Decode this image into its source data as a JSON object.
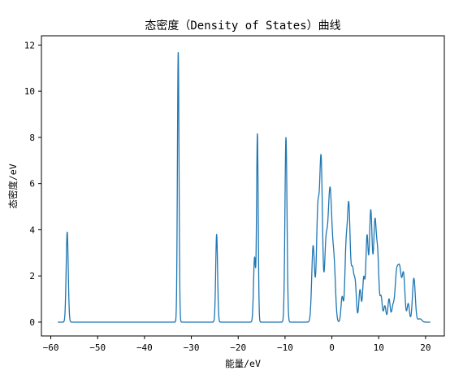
{
  "chart_data": {
    "type": "line",
    "title": "态密度（Density of States）曲线",
    "xlabel": "能量/eV",
    "ylabel": "态密度/eV",
    "xlim": [
      -62,
      24
    ],
    "ylim": [
      -0.6,
      12.4
    ],
    "grid": false,
    "xticks": [
      -60,
      -50,
      -40,
      -30,
      -20,
      -10,
      0,
      10,
      20
    ],
    "yticks": [
      0,
      2,
      4,
      6,
      8,
      10,
      12
    ],
    "xtick_labels": [
      "−60",
      "−50",
      "−40",
      "−30",
      "−20",
      "−10",
      "0",
      "10",
      "20"
    ],
    "ytick_labels": [
      "0",
      "2",
      "4",
      "6",
      "8",
      "10",
      "12"
    ],
    "series": [
      {
        "color": "#1f77b4",
        "x_range": [
          -58.5,
          21.0
        ],
        "peaks": [
          {
            "x": -56.5,
            "height": 3.9,
            "width": 0.22
          },
          {
            "x": -32.8,
            "height": 11.7,
            "width": 0.17
          },
          {
            "x": -24.6,
            "height": 3.8,
            "width": 0.2
          },
          {
            "x": -16.5,
            "height": 2.8,
            "width": 0.22
          },
          {
            "x": -15.9,
            "height": 8.1,
            "width": 0.17
          },
          {
            "x": -9.8,
            "height": 8.0,
            "width": 0.22
          },
          {
            "x": -4.0,
            "height": 3.3,
            "width": 0.3
          },
          {
            "x": -3.0,
            "height": 4.7,
            "width": 0.3
          },
          {
            "x": -2.3,
            "height": 6.9,
            "width": 0.3
          },
          {
            "x": -1.3,
            "height": 2.8,
            "width": 0.3
          },
          {
            "x": -0.4,
            "height": 5.8,
            "width": 0.45
          },
          {
            "x": 0.5,
            "height": 2.0,
            "width": 0.3
          },
          {
            "x": 2.2,
            "height": 1.1,
            "width": 0.25
          },
          {
            "x": 3.0,
            "height": 2.8,
            "width": 0.25
          },
          {
            "x": 3.6,
            "height": 5.0,
            "width": 0.3
          },
          {
            "x": 4.4,
            "height": 2.2,
            "width": 0.3
          },
          {
            "x": 5.0,
            "height": 1.5,
            "width": 0.25
          },
          {
            "x": 6.0,
            "height": 1.4,
            "width": 0.25
          },
          {
            "x": 6.8,
            "height": 1.9,
            "width": 0.25
          },
          {
            "x": 7.5,
            "height": 3.6,
            "width": 0.25
          },
          {
            "x": 8.3,
            "height": 4.8,
            "width": 0.3
          },
          {
            "x": 9.2,
            "height": 4.3,
            "width": 0.3
          },
          {
            "x": 9.8,
            "height": 2.5,
            "width": 0.25
          },
          {
            "x": 10.5,
            "height": 1.1,
            "width": 0.25
          },
          {
            "x": 11.3,
            "height": 0.7,
            "width": 0.25
          },
          {
            "x": 12.2,
            "height": 1.0,
            "width": 0.25
          },
          {
            "x": 13.0,
            "height": 0.6,
            "width": 0.25
          },
          {
            "x": 13.8,
            "height": 2.0,
            "width": 0.35
          },
          {
            "x": 14.5,
            "height": 2.1,
            "width": 0.35
          },
          {
            "x": 15.3,
            "height": 2.0,
            "width": 0.3
          },
          {
            "x": 16.3,
            "height": 0.8,
            "width": 0.25
          },
          {
            "x": 17.5,
            "height": 1.9,
            "width": 0.3
          },
          {
            "x": 18.5,
            "height": 0.1,
            "width": 0.3
          },
          {
            "x": 19.0,
            "height": 0.1,
            "width": 0.3
          }
        ]
      }
    ]
  }
}
